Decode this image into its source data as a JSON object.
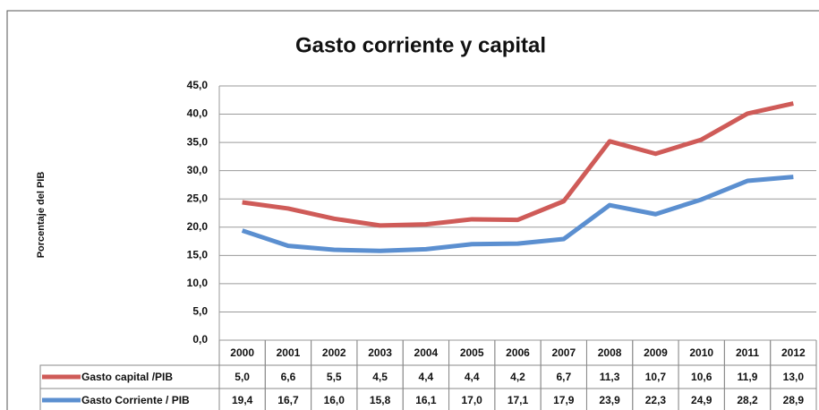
{
  "chart_data": {
    "type": "line",
    "title": "Gasto corriente y capital",
    "y_label": "Porcentaje del PIB",
    "stacked": true,
    "grid": true,
    "categories": [
      "2000",
      "2001",
      "2002",
      "2003",
      "2004",
      "2005",
      "2006",
      "2007",
      "2008",
      "2009",
      "2010",
      "2011",
      "2012"
    ],
    "series": [
      {
        "name": "Gasto capital /PIB",
        "color": "#cf5b58",
        "values": [
          5.0,
          6.6,
          5.5,
          4.5,
          4.4,
          4.4,
          4.2,
          6.7,
          11.3,
          10.7,
          10.6,
          11.9,
          13.0
        ],
        "value_labels": [
          "5,0",
          "6,6",
          "5,5",
          "4,5",
          "4,4",
          "4,4",
          "4,2",
          "6,7",
          "11,3",
          "10,7",
          "10,6",
          "11,9",
          "13,0"
        ]
      },
      {
        "name": "Gasto Corriente / PIB",
        "color": "#5b8fd0",
        "values": [
          19.4,
          16.7,
          16.0,
          15.8,
          16.1,
          17.0,
          17.1,
          17.9,
          23.9,
          22.3,
          24.9,
          28.2,
          28.9
        ],
        "value_labels": [
          "19,4",
          "16,7",
          "16,0",
          "15,8",
          "16,1",
          "17,0",
          "17,1",
          "17,9",
          "23,9",
          "22,3",
          "24,9",
          "28,2",
          "28,9"
        ]
      }
    ],
    "ylim": [
      0,
      45
    ],
    "yticks": [
      {
        "value": 0,
        "label": "0,0"
      },
      {
        "value": 5,
        "label": "5,0"
      },
      {
        "value": 10,
        "label": "10,0"
      },
      {
        "value": 15,
        "label": "15,0"
      },
      {
        "value": 20,
        "label": "20,0"
      },
      {
        "value": 25,
        "label": "25,0"
      },
      {
        "value": 30,
        "label": "30,0"
      },
      {
        "value": 35,
        "label": "35,0"
      },
      {
        "value": 40,
        "label": "40,0"
      },
      {
        "value": 45,
        "label": "45,0"
      }
    ]
  }
}
